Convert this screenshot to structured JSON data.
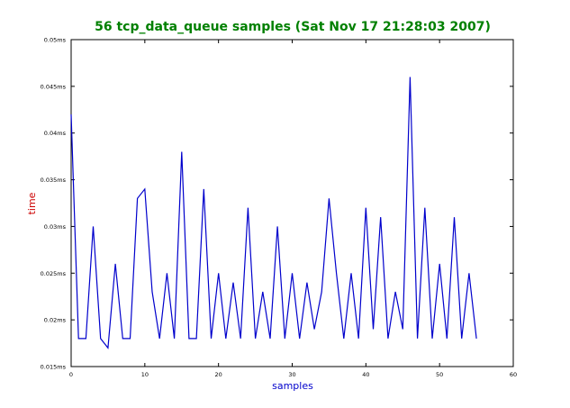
{
  "chart_data": {
    "type": "line",
    "title": "56 tcp_data_queue samples (Sat Nov 17 21:28:03 2007)",
    "xlabel": "samples",
    "ylabel": "time",
    "xlim": [
      0,
      60
    ],
    "ylim": [
      0.015,
      0.05
    ],
    "x_ticks": [
      0,
      10,
      20,
      30,
      40,
      50,
      60
    ],
    "x_tick_labels": [
      "0",
      "10",
      "20",
      "30",
      "40",
      "50",
      "60"
    ],
    "y_ticks": [
      0.015,
      0.02,
      0.025,
      0.03,
      0.035,
      0.04,
      0.045,
      0.05
    ],
    "y_tick_labels": [
      "0.015ms",
      "0.02ms",
      "0.025ms",
      "0.03ms",
      "0.035ms",
      "0.04ms",
      "0.045ms",
      "0.05ms"
    ],
    "grid": false,
    "colors": {
      "title": "#008000",
      "xlabel": "#0000cc",
      "ylabel": "#cc0000",
      "line": "#0000cc",
      "axes": "#000000"
    },
    "series": [
      {
        "x": [
          0,
          1,
          2,
          3,
          4,
          5,
          6,
          7,
          8,
          9,
          10,
          11,
          12,
          13,
          14,
          15,
          16,
          17,
          18,
          19,
          20,
          21,
          22,
          23,
          24,
          25,
          26,
          27,
          28,
          29,
          30,
          31,
          32,
          33,
          34,
          35,
          36,
          37,
          38,
          39,
          40,
          41,
          42,
          43,
          44,
          45,
          46,
          47,
          48,
          49,
          50,
          51,
          52,
          53,
          54,
          55
        ],
        "values": [
          0.042,
          0.018,
          0.018,
          0.03,
          0.018,
          0.017,
          0.026,
          0.018,
          0.018,
          0.033,
          0.034,
          0.023,
          0.018,
          0.025,
          0.018,
          0.038,
          0.018,
          0.018,
          0.034,
          0.018,
          0.025,
          0.018,
          0.024,
          0.018,
          0.032,
          0.018,
          0.023,
          0.018,
          0.03,
          0.018,
          0.025,
          0.018,
          0.024,
          0.019,
          0.023,
          0.033,
          0.025,
          0.018,
          0.025,
          0.018,
          0.032,
          0.019,
          0.031,
          0.018,
          0.023,
          0.019,
          0.046,
          0.018,
          0.032,
          0.018,
          0.026,
          0.018,
          0.031,
          0.018,
          0.025,
          0.018
        ]
      }
    ]
  }
}
